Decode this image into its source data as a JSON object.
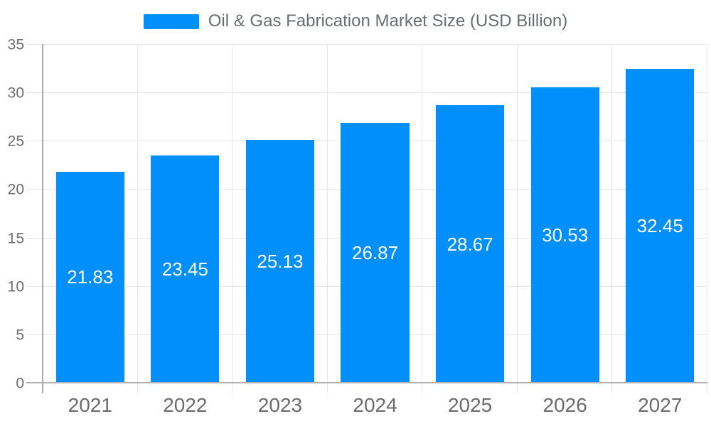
{
  "legend": {
    "label": "Oil & Gas Fabrication Market Size (USD Billion)",
    "swatch_color": "#008FFB"
  },
  "chart_data": {
    "type": "bar",
    "title": "Oil & Gas Fabrication Market Size (USD Billion)",
    "categories": [
      "2021",
      "2022",
      "2023",
      "2024",
      "2025",
      "2026",
      "2027"
    ],
    "series": [
      {
        "name": "Oil & Gas Fabrication Market Size (USD Billion)",
        "values": [
          21.83,
          23.45,
          25.13,
          26.87,
          28.67,
          30.53,
          32.45
        ]
      }
    ],
    "value_labels": [
      "21.83",
      "23.45",
      "25.13",
      "26.87",
      "28.67",
      "30.53",
      "32.45"
    ],
    "xlabel": "",
    "ylabel": "",
    "ylim": [
      0,
      35
    ],
    "yticks": [
      0,
      5,
      10,
      15,
      20,
      25,
      30,
      35
    ],
    "grid": true,
    "legend_position": "top",
    "colors": {
      "bar": "#008FFB",
      "value_label": "#ffffff",
      "grid_line": "#e7e7e7",
      "baseline": "#b0b0b0",
      "axis_line": "#a9a9a9",
      "y_label": "#6e6e6e",
      "x_label": "#6b6b6b",
      "legend_text": "#6a6d70",
      "background": "#ffffff"
    }
  }
}
